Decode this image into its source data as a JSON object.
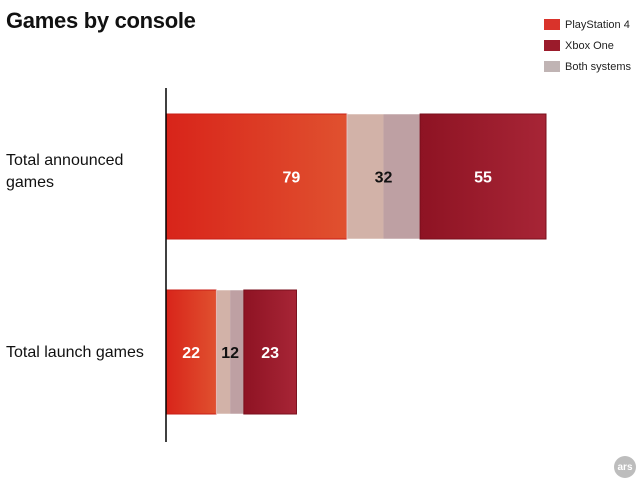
{
  "chart_data": {
    "type": "bar",
    "orientation": "horizontal",
    "stacked": true,
    "title": "Games by console",
    "categories": [
      "Total announced\ngames",
      "Total launch games"
    ],
    "series": [
      {
        "name": "PlayStation 4",
        "values": [
          79,
          22
        ]
      },
      {
        "name": "Both systems",
        "values": [
          32,
          12
        ]
      },
      {
        "name": "Xbox One",
        "values": [
          55,
          23
        ]
      }
    ],
    "segment_display": [
      [
        {
          "label": "79",
          "value": 79,
          "color": "#d8241a",
          "color_end": "#e0512f",
          "text_color": "#ffffff"
        },
        {
          "label": "32",
          "value": 32,
          "split": true,
          "color": "#d2b2a8",
          "color2": "#bea0a3",
          "text_color": "#111111"
        },
        {
          "label": "55",
          "value": 55,
          "color": "#8e1323",
          "color_end": "#a72536",
          "text_color": "#ffffff"
        }
      ],
      [
        {
          "label": "22",
          "value": 22,
          "color": "#d8241a",
          "color_end": "#e0512f",
          "text_color": "#ffffff"
        },
        {
          "label": "12",
          "value": 12,
          "split": true,
          "color": "#d2b2a8",
          "color2": "#bea0a3",
          "text_color": "#111111"
        },
        {
          "label": "23",
          "value": 23,
          "color": "#8e1323",
          "color_end": "#a72536",
          "text_color": "#ffffff"
        }
      ]
    ],
    "legend": [
      {
        "label": "PlayStation 4",
        "color": "#d9332b"
      },
      {
        "label": "Xbox One",
        "color": "#9b1b2b"
      },
      {
        "label": "Both systems",
        "color": "#c0b4b4"
      }
    ],
    "legend_position": "top-right",
    "xlim": [
      0,
      166
    ],
    "grid": false,
    "xlabel": "",
    "ylabel": ""
  },
  "branding": {
    "logo_text": "ars"
  }
}
